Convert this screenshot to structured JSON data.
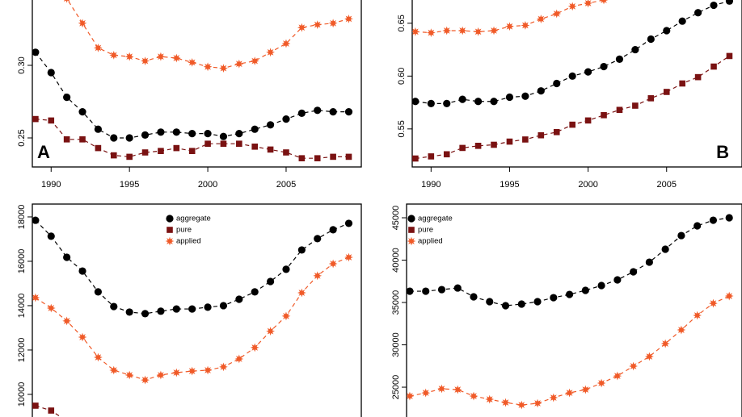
{
  "chart_data": [
    {
      "type": "line",
      "panel": "A",
      "x": [
        1989,
        1990,
        1991,
        1992,
        1993,
        1994,
        1995,
        1996,
        1997,
        1998,
        1999,
        2000,
        2001,
        2002,
        2003,
        2004,
        2005,
        2006,
        2007,
        2008,
        2009
      ],
      "xlim": [
        1988.8,
        2009.8
      ],
      "xticks": [
        1990,
        1995,
        2000,
        2005
      ],
      "ylim": [
        0.23,
        0.345
      ],
      "yticks": [
        0.25,
        {
          "value": 0.3,
          "label": "0.30"
        }
      ],
      "series": [
        {
          "name": "aggregate",
          "color": "#000000",
          "marker": "circle",
          "values": [
            0.309,
            0.295,
            0.278,
            0.268,
            0.256,
            0.25,
            0.25,
            0.252,
            0.254,
            0.254,
            0.253,
            0.253,
            0.251,
            0.253,
            0.256,
            0.259,
            0.263,
            0.267,
            0.269,
            0.268,
            0.268
          ]
        },
        {
          "name": "pure",
          "color": "#7a1212",
          "marker": "square",
          "values": [
            0.263,
            0.262,
            0.249,
            0.249,
            0.243,
            0.238,
            0.237,
            0.24,
            0.241,
            0.243,
            0.241,
            0.246,
            0.246,
            0.246,
            0.244,
            0.242,
            0.24,
            0.236,
            0.236,
            0.237,
            0.237
          ]
        },
        {
          "name": "applied",
          "color": "#f05a28",
          "marker": "star",
          "values": [
            null,
            0.366,
            0.346,
            0.329,
            0.312,
            0.307,
            0.306,
            0.303,
            0.306,
            0.305,
            0.302,
            0.299,
            0.298,
            0.301,
            0.303,
            0.309,
            0.315,
            0.326,
            0.328,
            0.329,
            0.332
          ]
        }
      ]
    },
    {
      "type": "line",
      "panel": "B",
      "x": [
        1989,
        1990,
        1991,
        1992,
        1993,
        1994,
        1995,
        1996,
        1997,
        1998,
        1999,
        2000,
        2001,
        2002,
        2003,
        2004,
        2005,
        2006,
        2007,
        2008,
        2009
      ],
      "xlim": [
        1988.8,
        2009.8
      ],
      "xticks": [
        1990,
        1995,
        2000,
        2005
      ],
      "ylim": [
        0.514,
        0.672
      ],
      "yticks": [
        0.55,
        {
          "value": 0.6,
          "label": "0.60"
        },
        0.65
      ],
      "series": [
        {
          "name": "aggregate",
          "color": "#000000",
          "marker": "circle",
          "values": [
            0.576,
            0.574,
            0.574,
            0.578,
            0.576,
            0.576,
            0.58,
            0.581,
            0.586,
            0.593,
            0.6,
            0.604,
            0.609,
            0.616,
            0.625,
            0.635,
            0.643,
            0.652,
            0.66,
            0.667,
            0.671
          ]
        },
        {
          "name": "pure",
          "color": "#7a1212",
          "marker": "square",
          "values": [
            0.522,
            0.524,
            0.526,
            0.532,
            0.534,
            0.535,
            0.538,
            0.54,
            0.544,
            0.547,
            0.554,
            0.558,
            0.563,
            0.568,
            0.572,
            0.579,
            0.585,
            0.593,
            0.599,
            0.609,
            0.619
          ]
        },
        {
          "name": "applied",
          "color": "#f05a28",
          "marker": "star",
          "values": [
            0.642,
            0.641,
            0.643,
            0.643,
            0.642,
            0.643,
            0.647,
            0.648,
            0.654,
            0.659,
            0.666,
            0.669,
            0.672,
            null,
            null,
            null,
            null,
            null,
            null,
            null,
            null
          ]
        }
      ]
    },
    {
      "type": "line",
      "x": [
        1989,
        1990,
        1991,
        1992,
        1993,
        1994,
        1995,
        1996,
        1997,
        1998,
        1999,
        2000,
        2001,
        2002,
        2003,
        2004,
        2005,
        2006,
        2007,
        2008,
        2009
      ],
      "xlim": [
        1988.8,
        2009.8
      ],
      "ylim": [
        8980,
        18580
      ],
      "yticks": [
        10000,
        12000,
        14000,
        16000,
        18000
      ],
      "legend": "top",
      "series": [
        {
          "name": "aggregate",
          "color": "#000000",
          "marker": "circle",
          "values": [
            17850,
            17130,
            16180,
            15560,
            14620,
            13960,
            13710,
            13640,
            13750,
            13850,
            13850,
            13930,
            14000,
            14290,
            14620,
            15090,
            15640,
            16510,
            17020,
            17420,
            17710
          ]
        },
        {
          "name": "pure",
          "color": "#7a1212",
          "marker": "square",
          "values": [
            9490,
            9270,
            8800,
            null,
            null,
            null,
            null,
            null,
            null,
            null,
            null,
            null,
            null,
            null,
            null,
            null,
            null,
            null,
            null,
            null,
            null
          ]
        },
        {
          "name": "applied",
          "color": "#f05a28",
          "marker": "star",
          "values": [
            14360,
            13890,
            13310,
            12580,
            11670,
            11090,
            10870,
            10650,
            10870,
            10980,
            11050,
            11090,
            11240,
            11600,
            12110,
            12850,
            13530,
            14580,
            15350,
            15890,
            16180
          ]
        }
      ]
    },
    {
      "type": "line",
      "x": [
        1989,
        1990,
        1991,
        1992,
        1993,
        1994,
        1995,
        1996,
        1997,
        1998,
        1999,
        2000,
        2001,
        2002,
        2003,
        2004,
        2005,
        2006,
        2007,
        2008,
        2009
      ],
      "xlim": [
        1988.8,
        2009.8
      ],
      "ylim": [
        21480,
        46620
      ],
      "yticks": [
        25000,
        30000,
        35000,
        40000,
        45000
      ],
      "legend": "topleft",
      "series": [
        {
          "name": "aggregate",
          "color": "#000000",
          "marker": "circle",
          "values": [
            36330,
            36330,
            36520,
            36710,
            35670,
            35100,
            34620,
            34810,
            35100,
            35570,
            35950,
            36430,
            37000,
            37670,
            38620,
            39760,
            41290,
            42900,
            44050,
            44710,
            45000
          ]
        },
        {
          "name": "pure",
          "color": "#7a1212",
          "marker": "square",
          "values": [
            null,
            null,
            null,
            null,
            null,
            null,
            null,
            null,
            null,
            null,
            null,
            null,
            null,
            null,
            null,
            null,
            null,
            null,
            null,
            null,
            null
          ]
        },
        {
          "name": "applied",
          "color": "#f05a28",
          "marker": "star",
          "values": [
            23950,
            24330,
            24810,
            24710,
            23950,
            23570,
            23190,
            22900,
            23100,
            23760,
            24330,
            24710,
            25480,
            26330,
            27480,
            28620,
            30140,
            31760,
            33480,
            34900,
            35760
          ]
        }
      ]
    }
  ]
}
